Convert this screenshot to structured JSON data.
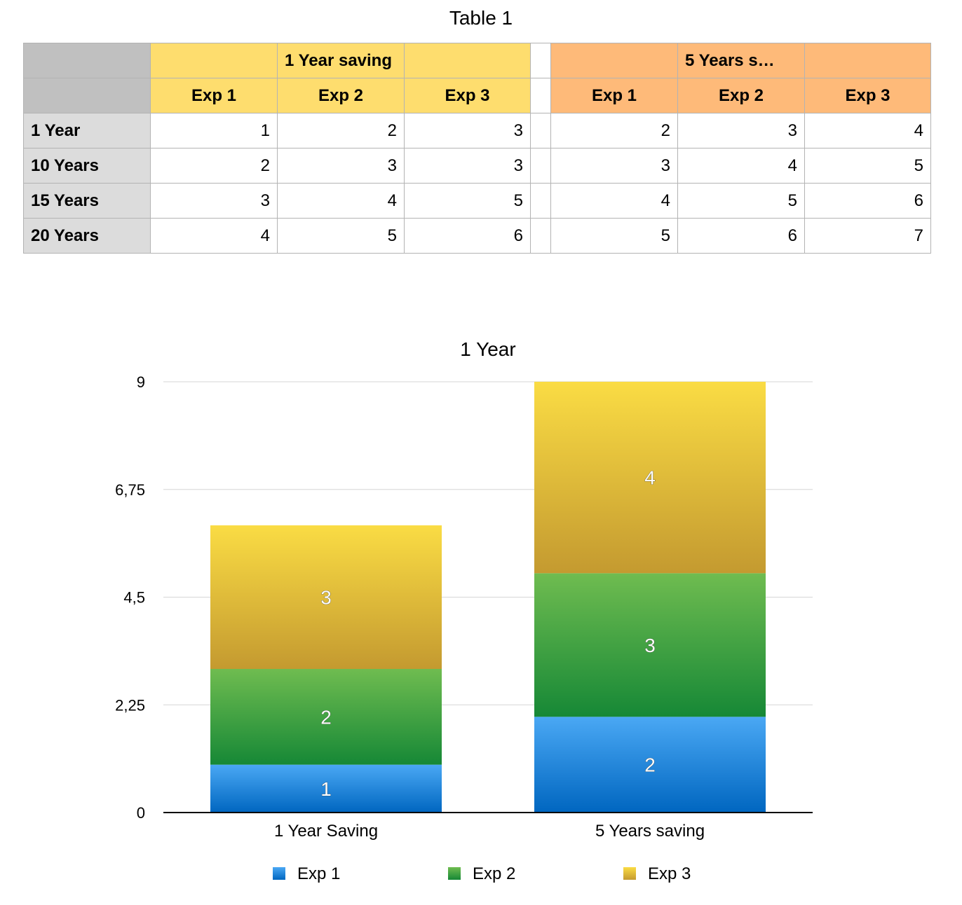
{
  "table": {
    "title": "Table 1",
    "group_headers": [
      "1 Year saving",
      "5 Years s…"
    ],
    "col_headers_1": [
      "Exp 1",
      "Exp 2",
      "Exp 3"
    ],
    "col_headers_2": [
      "Exp 1",
      "Exp 2",
      "Exp 3"
    ],
    "rows": [
      {
        "label": "1 Year",
        "g1": [
          "1",
          "2",
          "3"
        ],
        "g2": [
          "2",
          "3",
          "4"
        ]
      },
      {
        "label": "10 Years",
        "g1": [
          "2",
          "3",
          "3"
        ],
        "g2": [
          "3",
          "4",
          "5"
        ]
      },
      {
        "label": "15 Years",
        "g1": [
          "3",
          "4",
          "5"
        ],
        "g2": [
          "4",
          "5",
          "6"
        ]
      },
      {
        "label": "20 Years",
        "g1": [
          "4",
          "5",
          "6"
        ],
        "g2": [
          "5",
          "6",
          "7"
        ]
      }
    ],
    "colors": {
      "yellow_header": "#fedd6e",
      "orange_header": "#feba79",
      "row_header": "#dcdcdc",
      "corner": "#c0c0c0"
    }
  },
  "chart_data": {
    "type": "bar",
    "stacked": true,
    "title": "1 Year",
    "categories": [
      "1 Year Saving",
      "5 Years saving"
    ],
    "series": [
      {
        "name": "Exp 1",
        "values": [
          1,
          2
        ],
        "color_top": "#4aa8f4",
        "color_bottom": "#0066c0"
      },
      {
        "name": "Exp 2",
        "values": [
          2,
          3
        ],
        "color_top": "#6fbc50",
        "color_bottom": "#168836"
      },
      {
        "name": "Exp 3",
        "values": [
          3,
          4
        ],
        "color_top": "#fadc44",
        "color_bottom": "#c49a30"
      }
    ],
    "ylim": [
      0,
      9
    ],
    "yticks": [
      "0",
      "2,25",
      "4,5",
      "6,75",
      "9"
    ],
    "ytick_values": [
      0,
      2.25,
      4.5,
      6.75,
      9
    ],
    "grid": true,
    "legend_position": "bottom"
  }
}
